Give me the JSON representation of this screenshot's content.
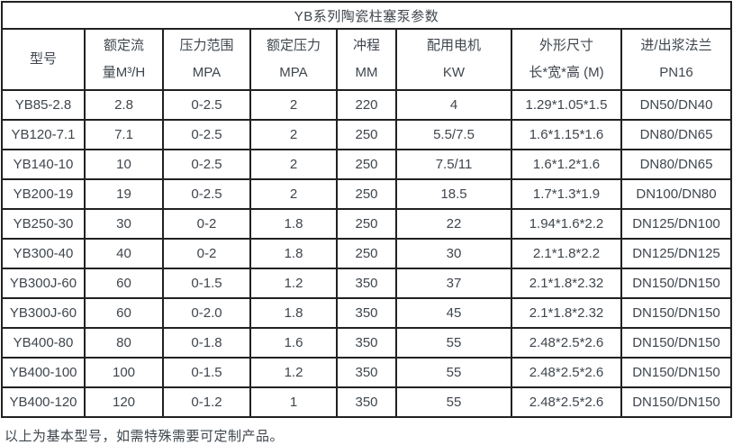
{
  "colors": {
    "border": "#212121",
    "text": "#3f464d",
    "background": "#ffffff"
  },
  "table": {
    "title": "YB系列陶瓷柱塞泵参数",
    "columns": [
      {
        "line1": "型号",
        "line2": ""
      },
      {
        "line1": "额定流",
        "line2": "量M³/H"
      },
      {
        "line1": "压力范围",
        "line2": "MPA"
      },
      {
        "line1": "额定压力",
        "line2": "MPA"
      },
      {
        "line1": "冲程",
        "line2": "MM"
      },
      {
        "line1": "配用电机",
        "line2": "KW"
      },
      {
        "line1": "外形尺寸",
        "line2": "长*宽*高 (M)"
      },
      {
        "line1": "进/出浆法兰",
        "line2": "PN16"
      }
    ],
    "rows": [
      [
        "YB85-2.8",
        "2.8",
        "0-2.5",
        "2",
        "220",
        "4",
        "1.29*1.05*1.5",
        "DN50/DN40"
      ],
      [
        "YB120-7.1",
        "7.1",
        "0-2.5",
        "2",
        "250",
        "5.5/7.5",
        "1.6*1.15*1.6",
        "DN80/DN65"
      ],
      [
        "YB140-10",
        "10",
        "0-2.5",
        "2",
        "250",
        "7.5/11",
        "1.6*1.2*1.6",
        "DN80/DN65"
      ],
      [
        "YB200-19",
        "19",
        "0-2.5",
        "2",
        "250",
        "18.5",
        "1.7*1.3*1.9",
        "DN100/DN80"
      ],
      [
        "YB250-30",
        "30",
        "0-2",
        "1.8",
        "250",
        "22",
        "1.94*1.6*2.2",
        "DN125/DN100"
      ],
      [
        "YB300-40",
        "40",
        "0-2",
        "1.8",
        "250",
        "30",
        "2.1*1.8*2.2",
        "DN125/DN125"
      ],
      [
        "YB300J-60",
        "60",
        "0-1.5",
        "1.2",
        "350",
        "37",
        "2.1*1.8*2.32",
        "DN150/DN150"
      ],
      [
        "YB300J-60",
        "60",
        "0-2.0",
        "1.8",
        "350",
        "45",
        "2.1*1.8*2.32",
        "DN150/DN150"
      ],
      [
        "YB400-80",
        "80",
        "0-1.8",
        "1.6",
        "350",
        "55",
        "2.48*2.5*2.6",
        "DN150/DN150"
      ],
      [
        "YB400-100",
        "100",
        "0-1.5",
        "1.2",
        "350",
        "55",
        "2.48*2.5*2.6",
        "DN150/DN150"
      ],
      [
        "YB400-120",
        "120",
        "0-1.2",
        "1",
        "350",
        "55",
        "2.48*2.5*2.6",
        "DN150/DN150"
      ]
    ],
    "footer": "以上为基本型号，如需特殊需要可定制产品。"
  }
}
